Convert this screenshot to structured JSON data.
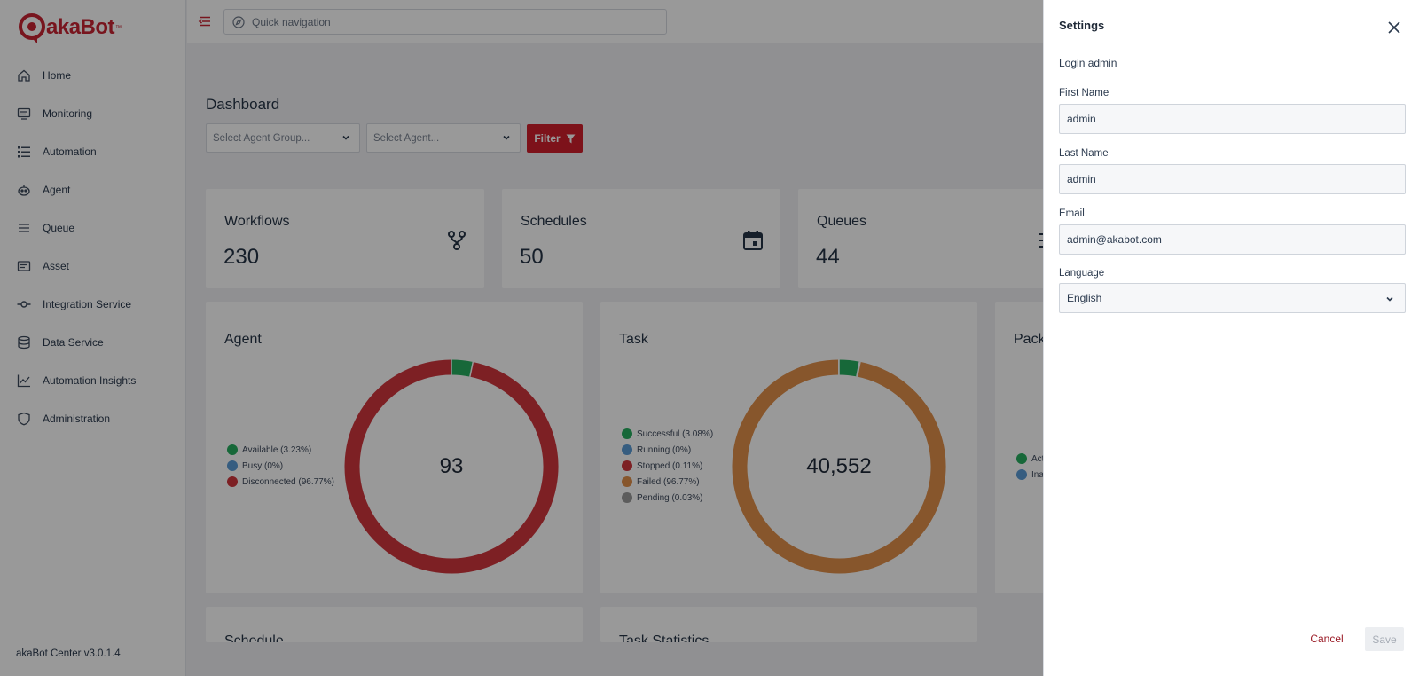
{
  "brand": {
    "name": "akaBot",
    "trademark": "™",
    "accent": "#c82333"
  },
  "search": {
    "placeholder": "Quick navigation"
  },
  "sidebar": {
    "items": [
      {
        "label": "Home",
        "icon": "home-icon"
      },
      {
        "label": "Monitoring",
        "icon": "monitoring-icon"
      },
      {
        "label": "Automation",
        "icon": "automation-icon"
      },
      {
        "label": "Agent",
        "icon": "agent-icon"
      },
      {
        "label": "Queue",
        "icon": "queue-icon"
      },
      {
        "label": "Asset",
        "icon": "asset-icon"
      },
      {
        "label": "Integration Service",
        "icon": "integration-icon"
      },
      {
        "label": "Data Service",
        "icon": "database-icon"
      },
      {
        "label": "Automation Insights",
        "icon": "insights-icon"
      },
      {
        "label": "Administration",
        "icon": "shield-icon"
      }
    ],
    "version": "akaBot Center v3.0.1.4"
  },
  "dashboard": {
    "title": "Dashboard",
    "agent_group_placeholder": "Select Agent Group...",
    "agent_placeholder": "Select Agent...",
    "filter_label": "Filter",
    "stats": [
      {
        "title": "Workflows",
        "value": "230",
        "icon": "workflow-icon"
      },
      {
        "title": "Schedules",
        "value": "50",
        "icon": "calendar-icon"
      },
      {
        "title": "Queues",
        "value": "44",
        "icon": "queue-stat-icon"
      }
    ],
    "lower_titles": {
      "schedule": "Schedule",
      "task_statistics": "Task Statistics"
    }
  },
  "chart_data": [
    {
      "type": "pie",
      "title": "Agent",
      "center_label": "93",
      "legend_labels": [
        "Available (3.23%)",
        "Busy (0%)",
        "Disconnected (96.77%)"
      ],
      "categories": [
        "Available",
        "Busy",
        "Disconnected"
      ],
      "values": [
        3.23,
        0,
        96.77
      ],
      "colors": [
        "#27ae60",
        "#5b9bd5",
        "#d0363d"
      ]
    },
    {
      "type": "pie",
      "title": "Task",
      "center_label": "40,552",
      "legend_labels": [
        "Successful (3.08%)",
        "Running (0%)",
        "Stopped (0.11%)",
        "Failed (96.77%)",
        "Pending (0.03%)"
      ],
      "categories": [
        "Successful",
        "Running",
        "Stopped",
        "Failed",
        "Pending"
      ],
      "values": [
        3.08,
        0,
        0.11,
        96.77,
        0.03
      ],
      "colors": [
        "#27ae60",
        "#5b9bd5",
        "#d0363d",
        "#e18f4a",
        "#999999"
      ]
    },
    {
      "type": "pie",
      "title": "Pack",
      "legend_labels": [
        "Act",
        "Ina"
      ],
      "categories": [
        "Act",
        "Ina"
      ],
      "colors": [
        "#27ae60",
        "#5b9bd5"
      ]
    }
  ],
  "settings": {
    "title": "Settings",
    "login_text": "Login admin",
    "first_name_label": "First Name",
    "first_name_value": "admin",
    "last_name_label": "Last Name",
    "last_name_value": "admin",
    "email_label": "Email",
    "email_value": "admin@akabot.com",
    "language_label": "Language",
    "language_value": "English",
    "cancel_label": "Cancel",
    "save_label": "Save"
  }
}
